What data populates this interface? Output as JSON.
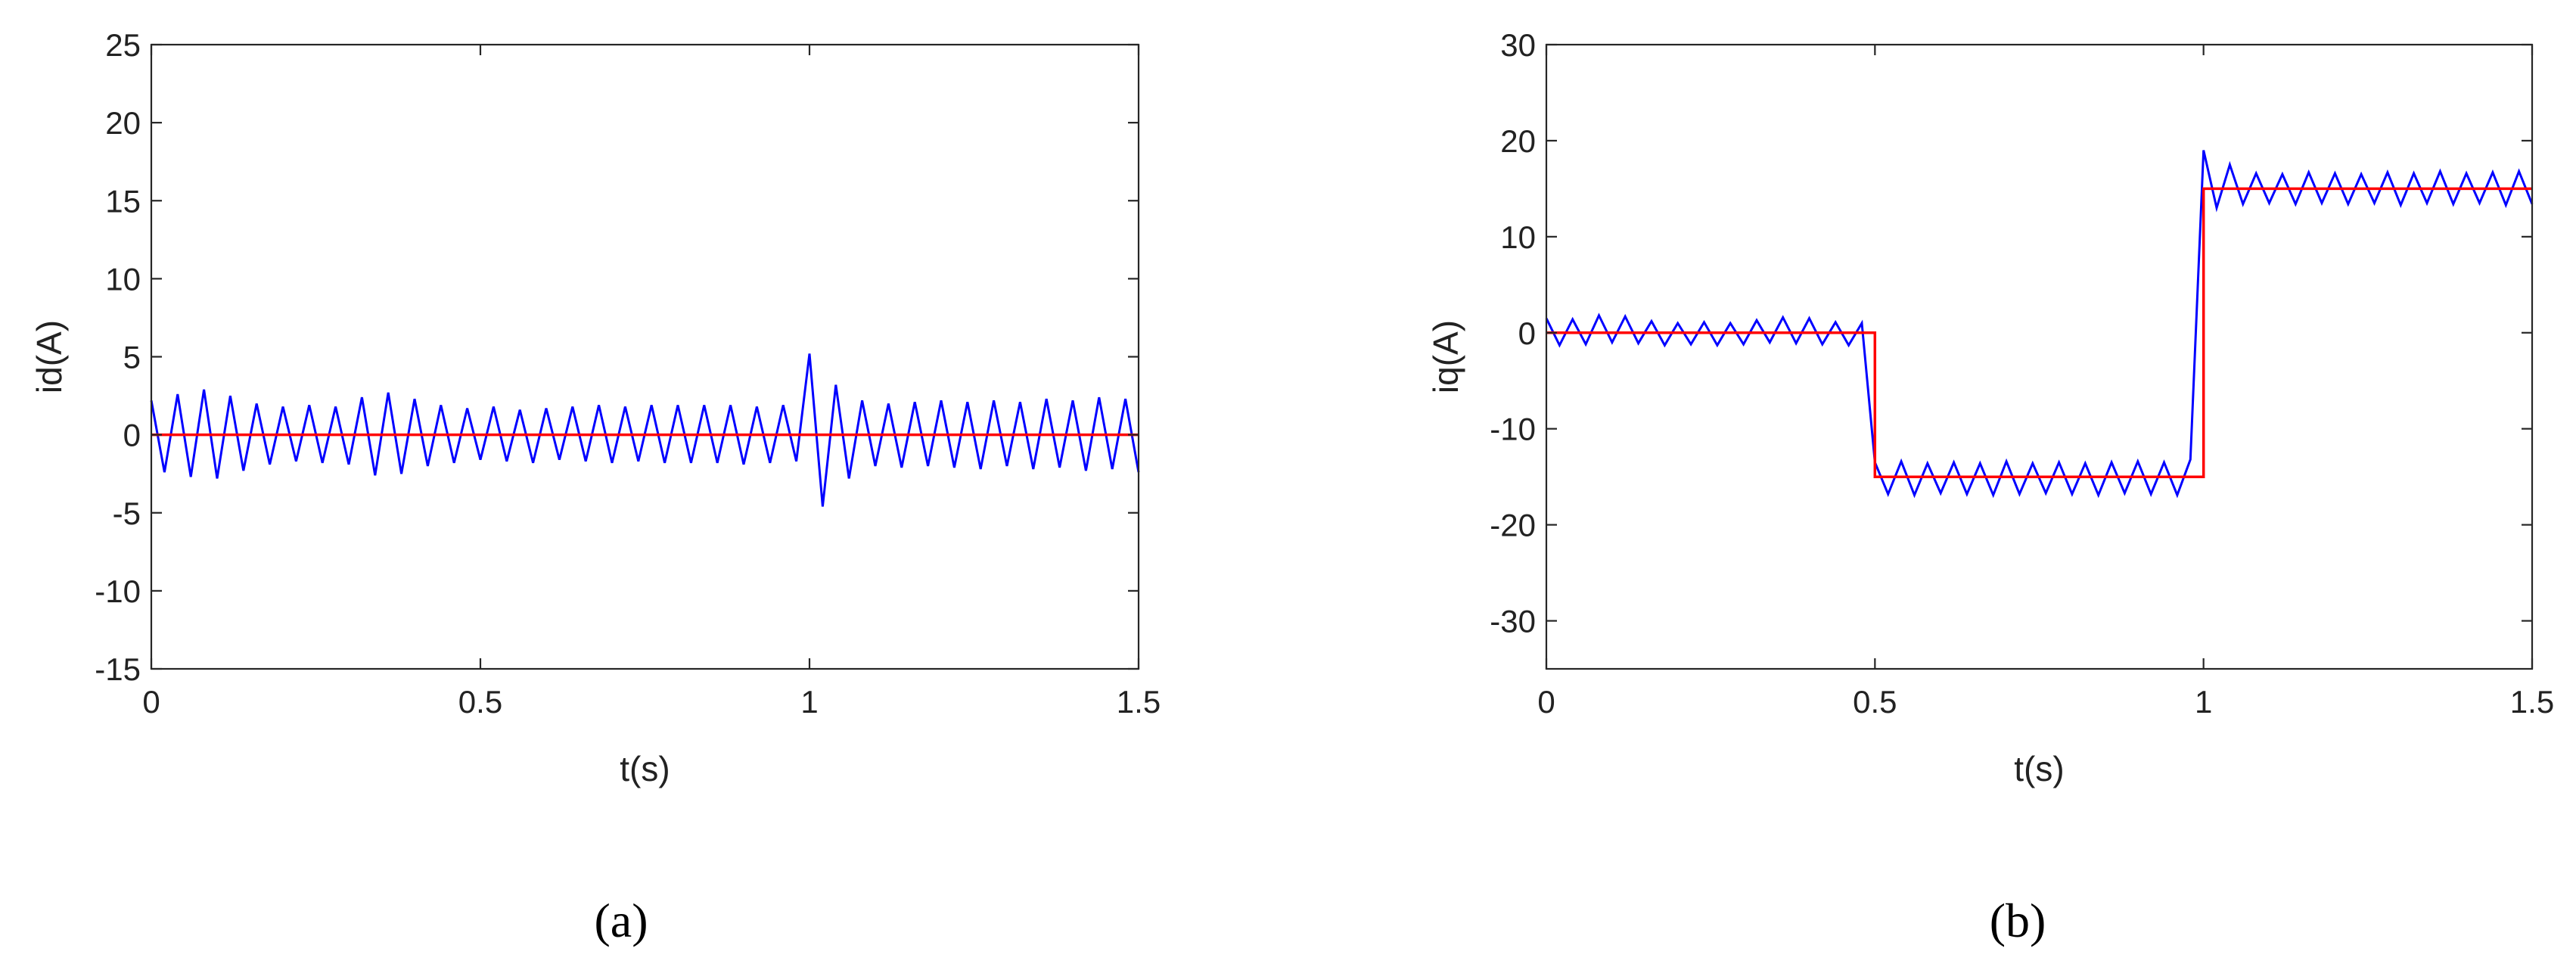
{
  "chart_data": [
    {
      "type": "line",
      "xlabel": "t(s)",
      "ylabel": "id(A)",
      "caption": "(a)",
      "xlim": [
        0,
        1.5
      ],
      "xticks": [
        0,
        0.5,
        1,
        1.5
      ],
      "ylim": [
        -15,
        25
      ],
      "yticks": [
        -15,
        -10,
        -5,
        0,
        5,
        10,
        15,
        20,
        25
      ],
      "series": [
        {
          "color": "#0000ff",
          "x": [
            0,
            0.02,
            0.04,
            0.06,
            0.08,
            0.1,
            0.12,
            0.14,
            0.16,
            0.18,
            0.2,
            0.22,
            0.24,
            0.26,
            0.28,
            0.3,
            0.32,
            0.34,
            0.36,
            0.38,
            0.4,
            0.42,
            0.44,
            0.46,
            0.48,
            0.5,
            0.52,
            0.54,
            0.56,
            0.58,
            0.6,
            0.62,
            0.64,
            0.66,
            0.68,
            0.7,
            0.72,
            0.74,
            0.76,
            0.78,
            0.8,
            0.82,
            0.84,
            0.86,
            0.88,
            0.9,
            0.92,
            0.94,
            0.96,
            0.98,
            1,
            1.02,
            1.04,
            1.06,
            1.08,
            1.1,
            1.12,
            1.14,
            1.16,
            1.18,
            1.2,
            1.22,
            1.24,
            1.26,
            1.28,
            1.3,
            1.32,
            1.34,
            1.36,
            1.38,
            1.4,
            1.42,
            1.44,
            1.46,
            1.48,
            1.5
          ],
          "values": [
            2.2,
            -2.4,
            2.6,
            -2.7,
            2.9,
            -2.8,
            2.5,
            -2.3,
            2.0,
            -1.9,
            1.8,
            -1.7,
            1.9,
            -1.8,
            1.8,
            -1.9,
            2.4,
            -2.6,
            2.7,
            -2.5,
            2.3,
            -2.0,
            1.9,
            -1.8,
            1.7,
            -1.6,
            1.8,
            -1.7,
            1.6,
            -1.8,
            1.7,
            -1.6,
            1.8,
            -1.7,
            1.9,
            -1.8,
            1.8,
            -1.7,
            1.9,
            -1.8,
            1.9,
            -1.8,
            1.9,
            -1.8,
            1.9,
            -1.9,
            1.8,
            -1.8,
            1.9,
            -1.7,
            5.2,
            -4.6,
            3.2,
            -2.8,
            2.2,
            -2.0,
            2.0,
            -2.1,
            2.1,
            -2.0,
            2.2,
            -2.1,
            2.1,
            -2.2,
            2.2,
            -2.0,
            2.1,
            -2.2,
            2.3,
            -2.1,
            2.2,
            -2.3,
            2.4,
            -2.2,
            2.3,
            -2.4
          ]
        },
        {
          "color": "#ff0000",
          "x": [
            0,
            1.5
          ],
          "values": [
            0,
            0
          ]
        }
      ]
    },
    {
      "type": "line",
      "xlabel": "t(s)",
      "ylabel": "iq(A)",
      "caption": "(b)",
      "xlim": [
        0,
        1.5
      ],
      "xticks": [
        0,
        0.5,
        1,
        1.5
      ],
      "ylim": [
        -35,
        30
      ],
      "yticks": [
        -30,
        -20,
        -10,
        0,
        10,
        20,
        30
      ],
      "series": [
        {
          "color": "#0000ff",
          "x": [
            0,
            0.02,
            0.04,
            0.06,
            0.08,
            0.1,
            0.12,
            0.14,
            0.16,
            0.18,
            0.2,
            0.22,
            0.24,
            0.26,
            0.28,
            0.3,
            0.32,
            0.34,
            0.36,
            0.38,
            0.4,
            0.42,
            0.44,
            0.46,
            0.48,
            0.5,
            0.52,
            0.54,
            0.56,
            0.58,
            0.6,
            0.62,
            0.64,
            0.66,
            0.68,
            0.7,
            0.72,
            0.74,
            0.76,
            0.78,
            0.8,
            0.82,
            0.84,
            0.86,
            0.88,
            0.9,
            0.92,
            0.94,
            0.96,
            0.98,
            1,
            1.02,
            1.04,
            1.06,
            1.08,
            1.1,
            1.12,
            1.14,
            1.16,
            1.18,
            1.2,
            1.22,
            1.24,
            1.26,
            1.28,
            1.3,
            1.32,
            1.34,
            1.36,
            1.38,
            1.4,
            1.42,
            1.44,
            1.46,
            1.48,
            1.5
          ],
          "values": [
            1.5,
            -1.3,
            1.4,
            -1.2,
            1.8,
            -1.0,
            1.7,
            -1.1,
            1.2,
            -1.3,
            1.0,
            -1.2,
            1.1,
            -1.3,
            1.0,
            -1.2,
            1.3,
            -1.0,
            1.6,
            -1.1,
            1.5,
            -1.2,
            1.1,
            -1.3,
            1.0,
            -13.5,
            -16.8,
            -13.4,
            -16.9,
            -13.6,
            -16.7,
            -13.5,
            -16.8,
            -13.6,
            -16.9,
            -13.4,
            -16.8,
            -13.6,
            -16.7,
            -13.5,
            -16.8,
            -13.6,
            -16.9,
            -13.5,
            -16.7,
            -13.4,
            -16.8,
            -13.5,
            -16.9,
            -13.2,
            19.0,
            13.0,
            17.5,
            13.4,
            16.6,
            13.5,
            16.5,
            13.4,
            16.7,
            13.5,
            16.6,
            13.4,
            16.5,
            13.5,
            16.7,
            13.3,
            16.6,
            13.5,
            16.8,
            13.4,
            16.6,
            13.5,
            16.7,
            13.3,
            16.8,
            13.4
          ]
        },
        {
          "color": "#ff0000",
          "x": [
            0,
            0.5,
            0.5,
            1,
            1,
            1.5
          ],
          "values": [
            0,
            0,
            -15,
            -15,
            15,
            15
          ]
        }
      ]
    }
  ]
}
